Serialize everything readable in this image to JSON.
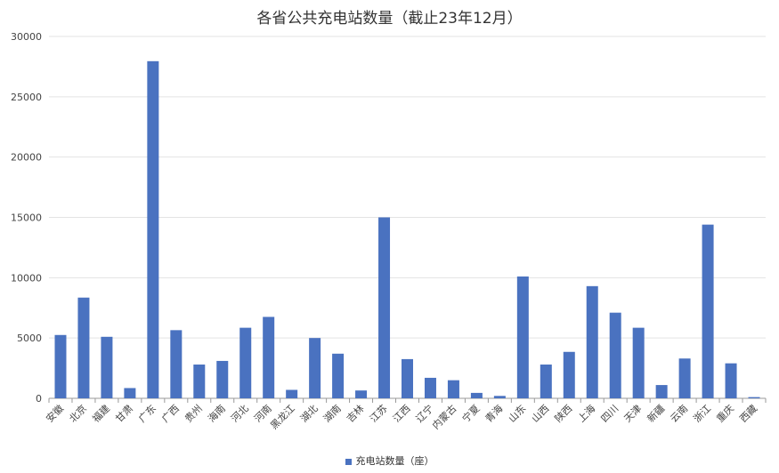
{
  "chart_data": {
    "type": "bar",
    "title": "各省公共充电站数量（截止23年12月）",
    "categories": [
      "安徽",
      "北京",
      "福建",
      "甘肃",
      "广东",
      "广西",
      "贵州",
      "海南",
      "河北",
      "河南",
      "黑龙江",
      "湖北",
      "湖南",
      "吉林",
      "江苏",
      "江西",
      "辽宁",
      "内蒙古",
      "宁夏",
      "青海",
      "山东",
      "山西",
      "陕西",
      "上海",
      "四川",
      "天津",
      "新疆",
      "云南",
      "浙江",
      "重庆",
      "西藏"
    ],
    "series": [
      {
        "name": "充电站数量（座）",
        "color": "#4a72c0",
        "values": [
          5250,
          8350,
          5100,
          850,
          27950,
          5650,
          2800,
          3100,
          5850,
          6750,
          700,
          5000,
          3700,
          650,
          15000,
          3250,
          1700,
          1500,
          450,
          200,
          10100,
          2800,
          3850,
          9300,
          7100,
          5850,
          1100,
          3300,
          14400,
          2900,
          100
        ]
      }
    ],
    "yticks": [
      0,
      5000,
      10000,
      15000,
      20000,
      25000,
      30000
    ],
    "ylim": [
      0,
      30000
    ],
    "grid": true,
    "legend_position": "bottom"
  }
}
